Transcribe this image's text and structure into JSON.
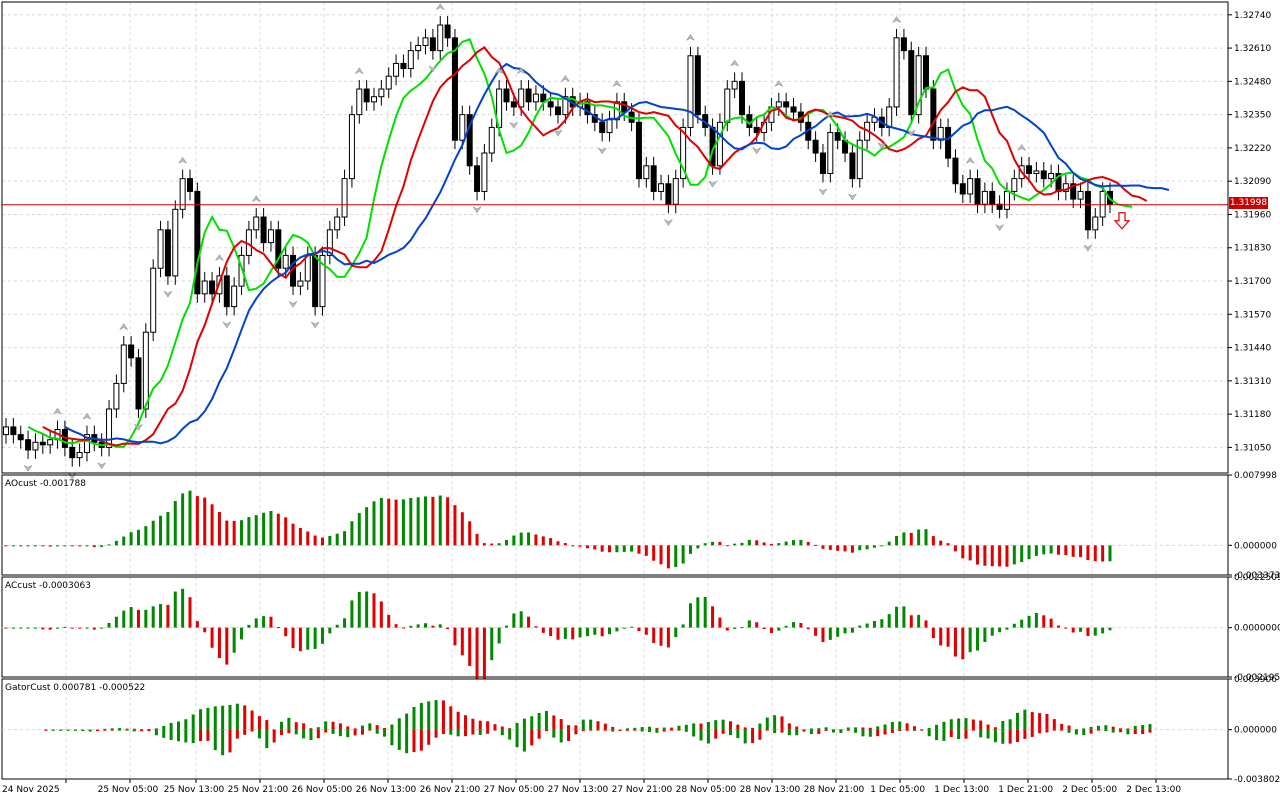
{
  "symbol_price_label": "1.31998",
  "signal_arrow": "down-arrow-icon",
  "main_chart": {
    "ylim": [
      1.3095,
      1.3279
    ],
    "y_ticks": [
      "1.32740",
      "1.32610",
      "1.32480",
      "1.32350",
      "1.32220",
      "1.32090",
      "1.31960",
      "1.31830",
      "1.31700",
      "1.31570",
      "1.31440",
      "1.31310",
      "1.31180",
      "1.31050"
    ],
    "current_price": 1.31998,
    "colors": {
      "green": "#00e000",
      "red": "#e00000",
      "blue": "#0044cc",
      "price_line": "#cc0000",
      "bull_body": "#ffffff",
      "bear_body": "#000000"
    }
  },
  "x_labels": [
    "24 Nov 2025",
    "25 Nov 05:00",
    "25 Nov 13:00",
    "25 Nov 21:00",
    "26 Nov 05:00",
    "26 Nov 13:00",
    "26 Nov 21:00",
    "27 Nov 05:00",
    "27 Nov 13:00",
    "27 Nov 21:00",
    "28 Nov 05:00",
    "28 Nov 13:00",
    "28 Nov 21:00",
    "1 Dec 05:00",
    "1 Dec 13:00",
    "1 Dec 21:00",
    "2 Dec 05:00",
    "2 Dec 13:00"
  ],
  "panels": {
    "ao": {
      "label": "AOcust -0.001788",
      "ticks": [
        "0.007998",
        "0.000000",
        "-0.003373"
      ],
      "ylim": [
        -0.003373,
        0.007998
      ]
    },
    "ac": {
      "label": "ACcust -0.0003063",
      "ticks": [
        "0.0022509",
        "0.0000000",
        "-0.0021956"
      ],
      "ylim": [
        -0.0021956,
        0.0022509
      ]
    },
    "gator": {
      "label": "GatorCust 0.000781 -0.000522",
      "ticks": [
        "0.003906",
        "0.000000",
        "-0.003802"
      ],
      "ylim": [
        -0.003802,
        0.003906
      ]
    }
  },
  "chart_data": {
    "type": "candlestick",
    "close": [
      1.3113,
      1.311,
      1.3108,
      1.3104,
      1.3107,
      1.3106,
      1.3108,
      1.3112,
      1.3105,
      1.3101,
      1.3103,
      1.311,
      1.3107,
      1.3105,
      1.312,
      1.313,
      1.3145,
      1.314,
      1.312,
      1.315,
      1.3175,
      1.319,
      1.3172,
      1.3198,
      1.321,
      1.3205,
      1.3165,
      1.317,
      1.3165,
      1.3172,
      1.316,
      1.3168,
      1.318,
      1.319,
      1.3195,
      1.3185,
      1.319,
      1.3175,
      1.318,
      1.3168,
      1.317,
      1.318,
      1.316,
      1.318,
      1.319,
      1.3195,
      1.321,
      1.3235,
      1.3245,
      1.324,
      1.3242,
      1.3245,
      1.325,
      1.3255,
      1.3253,
      1.326,
      1.3262,
      1.3265,
      1.326,
      1.327,
      1.3265,
      1.3225,
      1.3235,
      1.3215,
      1.3205,
      1.322,
      1.323,
      1.3245,
      1.324,
      1.3238,
      1.3245,
      1.324,
      1.3243,
      1.324,
      1.3238,
      1.3235,
      1.3242,
      1.3238,
      1.324,
      1.3235,
      1.3232,
      1.3228,
      1.3233,
      1.324,
      1.3236,
      1.3232,
      1.321,
      1.3215,
      1.3205,
      1.3208,
      1.32,
      1.321,
      1.323,
      1.3258,
      1.3235,
      1.323,
      1.3215,
      1.3232,
      1.3245,
      1.3248,
      1.3235,
      1.323,
      1.3228,
      1.3232,
      1.3238,
      1.324,
      1.3238,
      1.3236,
      1.3232,
      1.3225,
      1.322,
      1.3212,
      1.3228,
      1.3225,
      1.322,
      1.321,
      1.3225,
      1.3232,
      1.3234,
      1.323,
      1.3238,
      1.3265,
      1.326,
      1.3235,
      1.3258,
      1.3245,
      1.3225,
      1.323,
      1.3218,
      1.3208,
      1.3204,
      1.321,
      1.32,
      1.3205,
      1.32,
      1.3198,
      1.3205,
      1.321,
      1.3215,
      1.3212,
      1.3213,
      1.321,
      1.3212,
      1.3205,
      1.3208,
      1.3202,
      1.3205,
      1.319,
      1.3195,
      1.3205,
      1.32
    ],
    "sma_green": "fast moving average",
    "sma_red": "medium moving average",
    "sma_blue": "slow moving average",
    "current_price": 1.31998
  }
}
